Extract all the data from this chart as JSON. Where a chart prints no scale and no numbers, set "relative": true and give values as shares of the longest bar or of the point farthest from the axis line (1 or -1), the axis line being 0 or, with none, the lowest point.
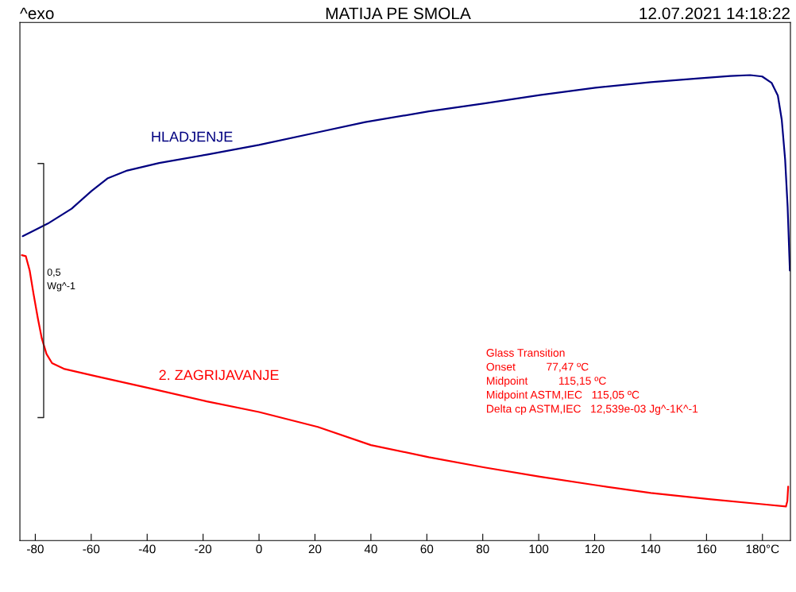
{
  "chart_data": {
    "type": "line",
    "title": "MATIJA PE SMOLA",
    "relative": true,
    "grid": false,
    "legend": false,
    "tick_labels": "x",
    "xlim": [
      -85.5,
      190
    ],
    "xticks": [
      -80,
      -60,
      -40,
      -20,
      0,
      20,
      40,
      60,
      80,
      100,
      120,
      140,
      160,
      {
        "value": 180,
        "label": "180°C"
      }
    ],
    "annotations": [
      "^exo",
      "12.07.2021 14:18:22",
      "0,5\nWg^-1",
      "Glass Transition",
      "Onset          77,47 ºC",
      "Midpoint          115,15 ºC",
      "Midpoint ASTM,IEC   115,05 ºC",
      "Delta cp ASTM,IEC   12,539e-03 Jg^-1K^-1"
    ],
    "series": [
      {
        "name": "HLADJENJE",
        "color": "#000080",
        "x": [
          -84.5,
          -81.1,
          -75.5,
          -67,
          -59.9,
          -54.2,
          -47.1,
          -35.7,
          -18.7,
          0,
          21,
          38,
          60.7,
          80.6,
          100.4,
          120.3,
          140.1,
          157.2,
          168.5,
          175.6,
          179.9,
          183.3,
          185.5,
          186.9,
          188.1,
          189,
          189.8
        ],
        "values": [
          0.654,
          0.664,
          0.681,
          0.713,
          0.751,
          0.778,
          0.795,
          0.811,
          0.829,
          0.85,
          0.877,
          0.899,
          0.922,
          0.939,
          0.957,
          0.973,
          0.985,
          0.993,
          0.998,
          1.0,
          0.997,
          0.983,
          0.956,
          0.904,
          0.819,
          0.717,
          0.58
        ]
      },
      {
        "name": "2. ZAGRIJAVANJE",
        "color": "#ff0000",
        "x": [
          -84.8,
          -83.4,
          -82,
          -80.6,
          -79.1,
          -77.7,
          -76,
          -74,
          -69.8,
          -58.4,
          -39.7,
          -18.7,
          0,
          21,
          40,
          60.7,
          80.6,
          100.4,
          120.3,
          140.1,
          160.9,
          179.9,
          188.4,
          188.9,
          189.2
        ],
        "values": [
          0.613,
          0.611,
          0.58,
          0.529,
          0.478,
          0.435,
          0.401,
          0.381,
          0.369,
          0.353,
          0.328,
          0.299,
          0.276,
          0.244,
          0.205,
          0.179,
          0.157,
          0.137,
          0.119,
          0.102,
          0.089,
          0.078,
          0.073,
          0.085,
          0.116
        ]
      }
    ]
  }
}
